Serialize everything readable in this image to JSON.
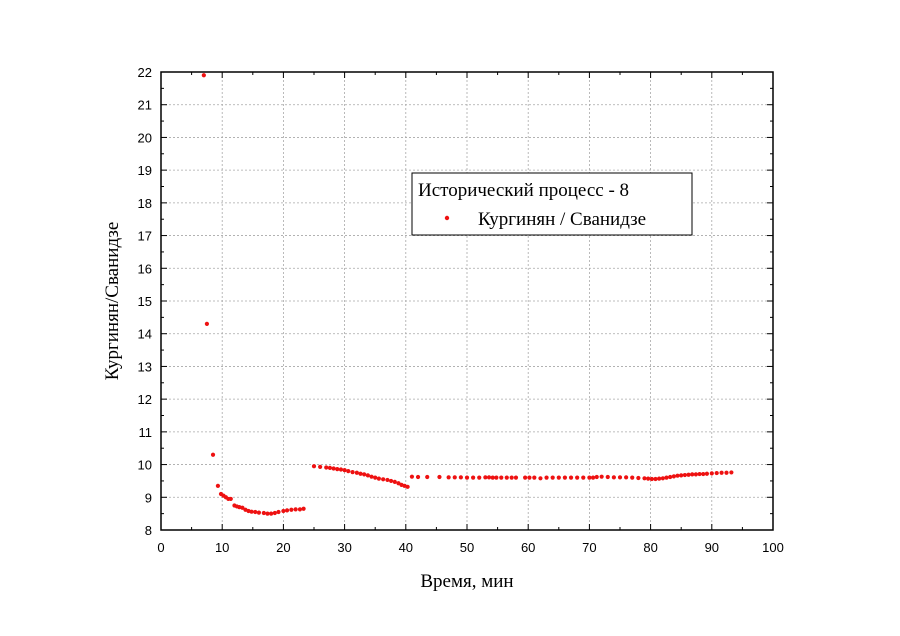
{
  "chart_data": {
    "type": "scatter",
    "xlabel": "Время, мин",
    "ylabel": "Кургинян/Сванидзе",
    "xlim": [
      0,
      100
    ],
    "ylim": [
      8,
      22
    ],
    "xticks": [
      "0",
      "10",
      "20",
      "30",
      "40",
      "50",
      "60",
      "70",
      "80",
      "90",
      "100"
    ],
    "yticks": [
      "8",
      "9",
      "10",
      "11",
      "12",
      "13",
      "14",
      "15",
      "16",
      "17",
      "18",
      "19",
      "20",
      "21",
      "22"
    ],
    "grid": true,
    "legend_placement": "upper-middle-right",
    "legend_title": "Исторический процесс - 8",
    "series": [
      {
        "name": "Кургинян / Сванидзе",
        "color": "#ee1111",
        "marker": "circle",
        "x": [
          7.0,
          7.5,
          8.5,
          9.3,
          9.8,
          10.2,
          10.6,
          11.0,
          11.4,
          12.0,
          12.4,
          12.8,
          13.3,
          13.8,
          14.3,
          14.8,
          15.4,
          16.0,
          16.8,
          17.4,
          18.0,
          18.6,
          19.2,
          20.0,
          20.6,
          21.3,
          22.0,
          22.7,
          23.3,
          25.0,
          26.0,
          27.0,
          27.6,
          28.2,
          28.8,
          29.4,
          30.0,
          30.6,
          31.3,
          32.0,
          32.6,
          33.2,
          33.8,
          34.4,
          35.0,
          35.6,
          36.3,
          37.0,
          37.6,
          38.2,
          38.8,
          39.3,
          39.8,
          40.3,
          41.0,
          42.0,
          43.5,
          45.5,
          47.0,
          48.0,
          49.0,
          50.0,
          51.0,
          52.0,
          53.0,
          53.6,
          54.2,
          54.8,
          55.6,
          56.5,
          57.3,
          58.0,
          59.5,
          60.2,
          61.0,
          62.0,
          63.0,
          64.0,
          65.0,
          66.0,
          67.0,
          68.0,
          69.0,
          70.0,
          70.6,
          71.2,
          72.0,
          73.0,
          74.0,
          75.0,
          76.0,
          77.0,
          78.0,
          79.0,
          79.6,
          80.2,
          80.8,
          81.4,
          82.0,
          82.6,
          83.2,
          83.8,
          84.4,
          85.0,
          85.6,
          86.2,
          86.8,
          87.4,
          88.0,
          88.6,
          89.2,
          90.0,
          90.8,
          91.6,
          92.4,
          93.2
        ],
        "y": [
          21.9,
          14.3,
          10.3,
          9.35,
          9.1,
          9.05,
          9.0,
          8.95,
          8.95,
          8.75,
          8.72,
          8.7,
          8.68,
          8.62,
          8.58,
          8.56,
          8.55,
          8.53,
          8.52,
          8.5,
          8.5,
          8.52,
          8.55,
          8.58,
          8.6,
          8.62,
          8.63,
          8.63,
          8.65,
          9.95,
          9.93,
          9.91,
          9.9,
          9.88,
          9.86,
          9.85,
          9.83,
          9.8,
          9.77,
          9.75,
          9.72,
          9.7,
          9.67,
          9.63,
          9.6,
          9.57,
          9.55,
          9.53,
          9.5,
          9.47,
          9.43,
          9.38,
          9.35,
          9.32,
          9.63,
          9.62,
          9.62,
          9.62,
          9.61,
          9.61,
          9.61,
          9.6,
          9.6,
          9.6,
          9.61,
          9.61,
          9.6,
          9.6,
          9.6,
          9.6,
          9.6,
          9.6,
          9.6,
          9.6,
          9.6,
          9.58,
          9.6,
          9.6,
          9.6,
          9.6,
          9.6,
          9.6,
          9.6,
          9.6,
          9.6,
          9.62,
          9.63,
          9.62,
          9.61,
          9.61,
          9.61,
          9.6,
          9.59,
          9.58,
          9.57,
          9.56,
          9.56,
          9.57,
          9.58,
          9.6,
          9.62,
          9.64,
          9.66,
          9.67,
          9.68,
          9.69,
          9.7,
          9.7,
          9.71,
          9.71,
          9.72,
          9.73,
          9.74,
          9.75,
          9.75,
          9.76
        ]
      }
    ]
  }
}
